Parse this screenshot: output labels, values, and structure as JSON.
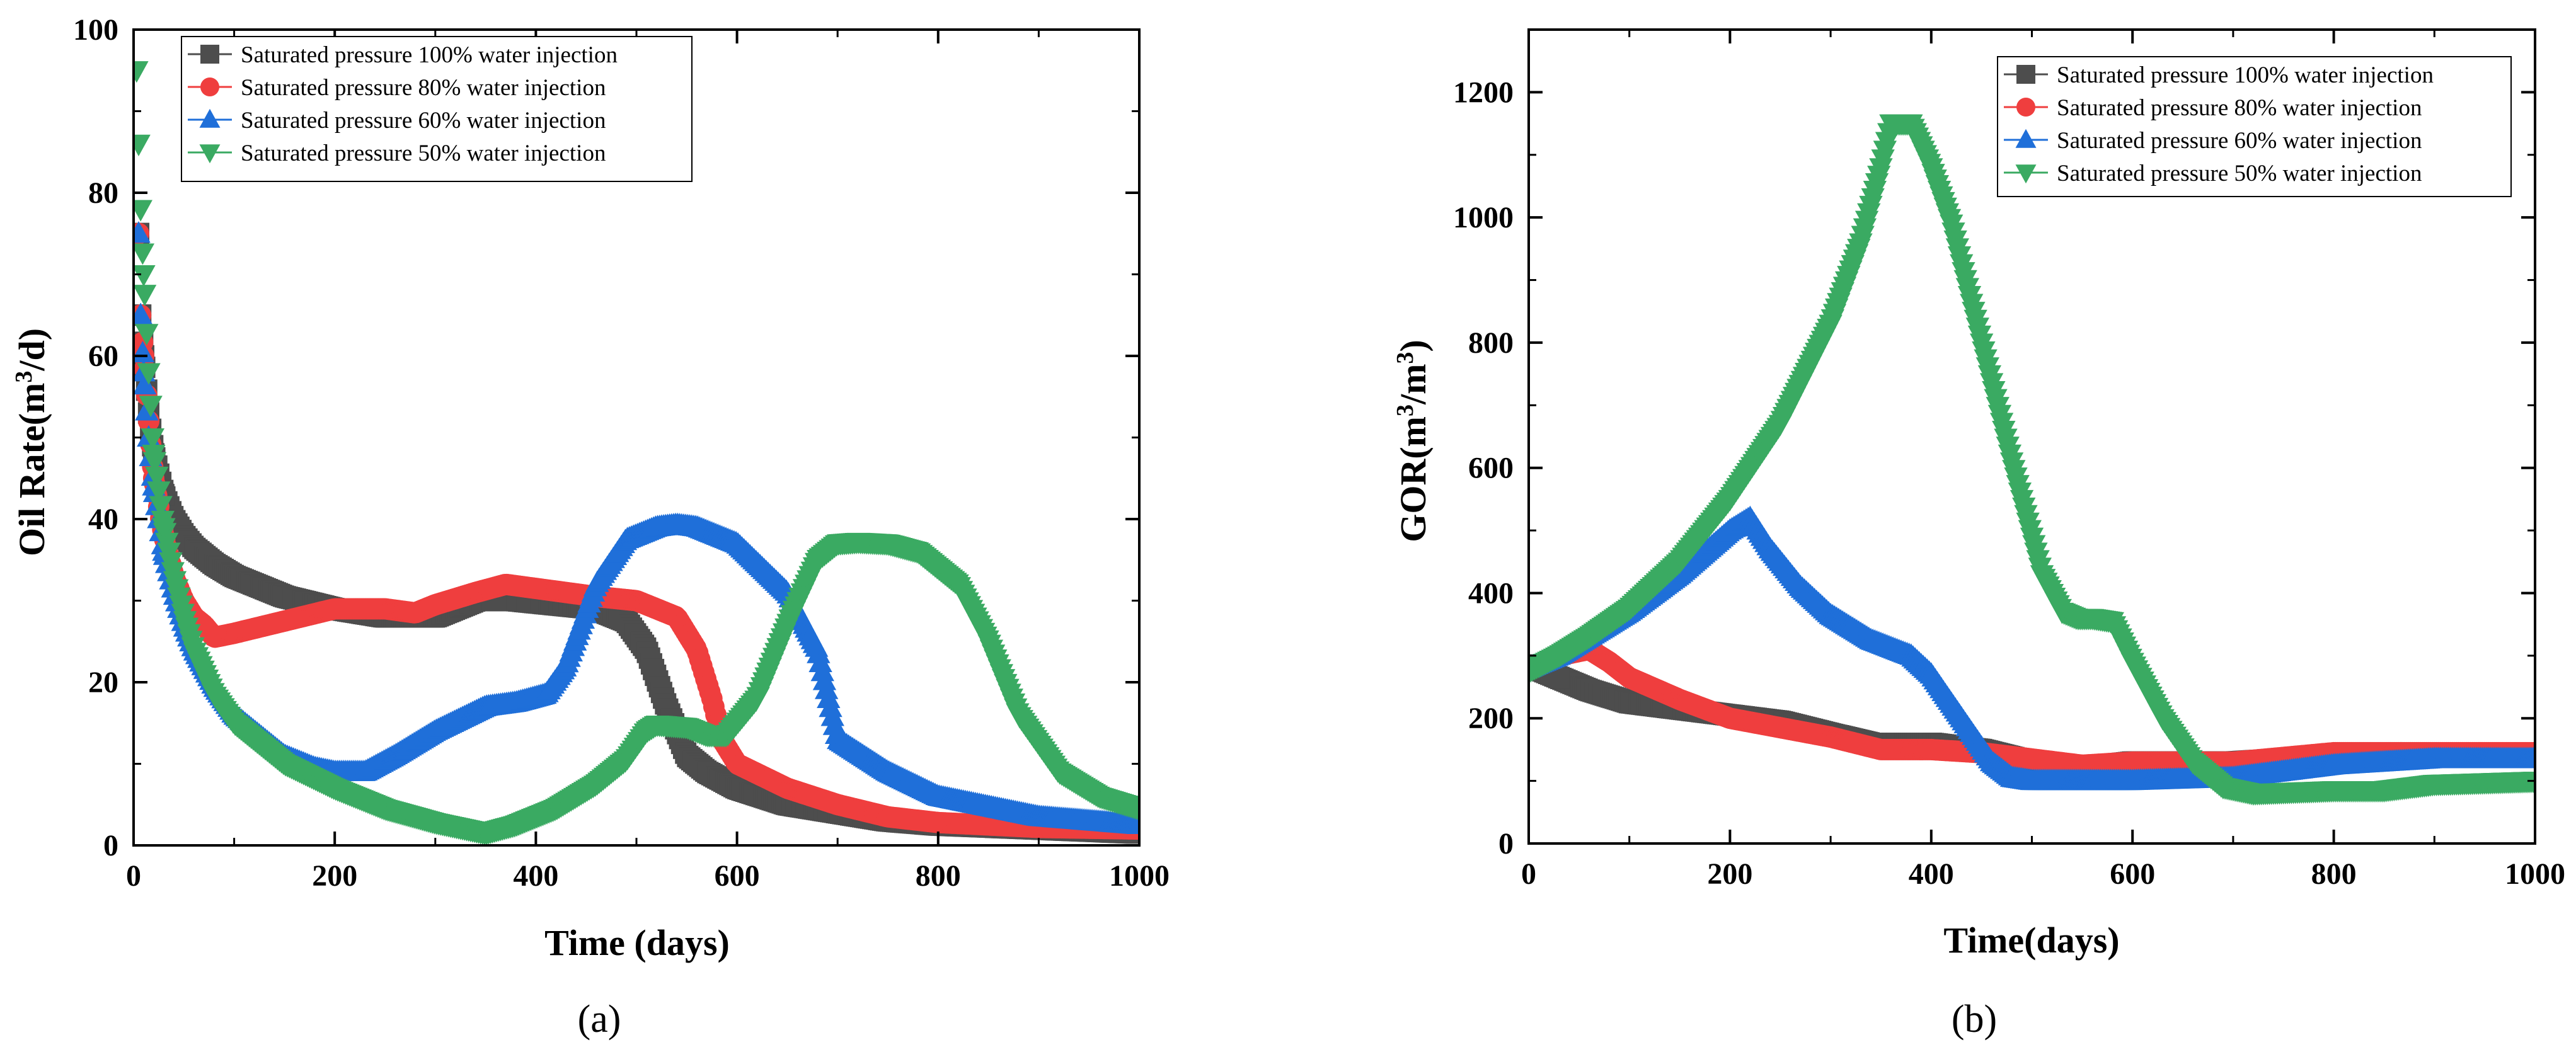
{
  "chart_data": [
    {
      "panel": "(a)",
      "type": "scatter",
      "xlabel": "Time (days)",
      "ylabel": {
        "prefix": "Oil Rate(m",
        "sup": "3",
        "suffix": "/d)"
      },
      "xlim": [
        0,
        1000
      ],
      "ylim": [
        0,
        100
      ],
      "xticks": [
        0,
        200,
        400,
        600,
        800,
        1000
      ],
      "yticks": [
        0,
        20,
        40,
        60,
        80,
        100
      ],
      "legend_position": "top-left",
      "series": [
        {
          "name": "Saturated pressure 100% water injection",
          "color": "#4d4d4d",
          "marker": "square",
          "x": [
            5,
            7,
            10,
            15,
            20,
            30,
            40,
            50,
            60,
            80,
            100,
            150,
            200,
            250,
            300,
            340,
            380,
            420,
            460,
            490,
            510,
            530,
            550,
            570,
            600,
            650,
            700,
            750,
            800,
            900,
            1000
          ],
          "y": [
            75,
            65,
            60,
            53,
            48,
            43,
            40,
            38,
            36.5,
            34.5,
            33,
            30.5,
            29,
            28,
            28,
            30,
            30,
            29.5,
            29,
            27.5,
            24,
            17,
            11,
            9,
            7,
            5,
            4,
            3,
            2.5,
            2,
            1.5
          ]
        },
        {
          "name": "Saturated pressure 80% water injection",
          "color": "#ef3e3e",
          "marker": "circle",
          "x": [
            5,
            7,
            10,
            15,
            20,
            30,
            40,
            50,
            60,
            70,
            80,
            100,
            150,
            200,
            250,
            280,
            300,
            340,
            370,
            400,
            430,
            460,
            500,
            540,
            560,
            575,
            585,
            600,
            650,
            700,
            750,
            800,
            900,
            1000
          ],
          "y": [
            75,
            65,
            60,
            52,
            45,
            38,
            33,
            30,
            28,
            27,
            25.5,
            26,
            27.5,
            29,
            29,
            28.5,
            29.5,
            31,
            32,
            31.5,
            31,
            30.5,
            30,
            28,
            24,
            18,
            13,
            10,
            7,
            5,
            3.5,
            2.8,
            2.2,
            2
          ]
        },
        {
          "name": "Saturated pressure 60% water injection",
          "color": "#1f6fd9",
          "marker": "triangle-up",
          "x": [
            5,
            7,
            10,
            15,
            20,
            30,
            40,
            50,
            60,
            80,
            100,
            150,
            180,
            200,
            230,
            260,
            300,
            350,
            380,
            410,
            430,
            460,
            490,
            520,
            540,
            560,
            600,
            650,
            680,
            700,
            750,
            800,
            900,
            1000
          ],
          "y": [
            75,
            65,
            58,
            50,
            44,
            36,
            31,
            27,
            24,
            19.5,
            16,
            11,
            9.5,
            9,
            9,
            11,
            14,
            17,
            17.5,
            18.5,
            22,
            32,
            37.5,
            39,
            39.3,
            39,
            37,
            31,
            24,
            13,
            9,
            6,
            3.5,
            2.5
          ]
        },
        {
          "name": "Saturated pressure 50% water injection",
          "color": "#3aaa62",
          "marker": "triangle-down",
          "x": [
            3,
            5,
            7,
            10,
            15,
            20,
            30,
            40,
            50,
            60,
            80,
            100,
            150,
            200,
            250,
            300,
            350,
            380,
            420,
            460,
            490,
            510,
            520,
            530,
            550,
            570,
            590,
            620,
            650,
            680,
            700,
            720,
            750,
            780,
            820,
            850,
            880,
            920,
            960,
            1000
          ],
          "y": [
            95,
            86,
            78,
            70,
            58,
            48,
            39,
            33,
            28,
            24,
            18.5,
            15,
            10,
            7,
            4.5,
            2.8,
            1.5,
            2.5,
            4.5,
            7.5,
            10.5,
            14,
            14.8,
            14.7,
            14.5,
            13.5,
            13.5,
            18,
            27,
            35,
            37,
            37.2,
            37,
            36,
            32,
            25,
            16,
            9,
            6,
            4.5
          ]
        }
      ]
    },
    {
      "panel": "(b)",
      "type": "scatter",
      "xlabel": "Time(days)",
      "ylabel": {
        "prefix": "GOR(m",
        "sup": "3",
        "mid": "/m",
        "sup2": "3",
        "suffix": ")"
      },
      "xlim": [
        0,
        1000
      ],
      "ylim": [
        0,
        1300
      ],
      "xticks": [
        0,
        200,
        400,
        600,
        800,
        1000
      ],
      "yticks": [
        0,
        200,
        400,
        600,
        800,
        1000,
        1200
      ],
      "legend_position": "top-right",
      "series": [
        {
          "name": "Saturated pressure 100% water injection",
          "color": "#4d4d4d",
          "marker": "square",
          "x": [
            0,
            30,
            60,
            100,
            150,
            200,
            250,
            300,
            340,
            400,
            450,
            500,
            550,
            600,
            700,
            800,
            900,
            1000
          ],
          "y": [
            285,
            265,
            245,
            225,
            215,
            205,
            195,
            175,
            160,
            160,
            150,
            130,
            120,
            130,
            130,
            140,
            140,
            140
          ]
        },
        {
          "name": "Saturated pressure 80% water injection",
          "color": "#ef3e3e",
          "marker": "circle",
          "x": [
            0,
            30,
            60,
            80,
            100,
            150,
            200,
            250,
            300,
            350,
            400,
            450,
            500,
            550,
            600,
            700,
            800,
            900,
            1000
          ],
          "y": [
            280,
            300,
            310,
            290,
            265,
            230,
            200,
            185,
            170,
            150,
            150,
            145,
            135,
            125,
            130,
            130,
            145,
            145,
            145
          ]
        },
        {
          "name": "Saturated pressure 60% water injection",
          "color": "#1f6fd9",
          "marker": "triangle-up",
          "x": [
            0,
            30,
            60,
            100,
            150,
            200,
            220,
            240,
            270,
            300,
            340,
            380,
            400,
            430,
            460,
            480,
            500,
            600,
            700,
            750,
            800,
            900,
            1000
          ],
          "y": [
            280,
            300,
            330,
            370,
            430,
            500,
            520,
            470,
            410,
            365,
            325,
            300,
            270,
            200,
            130,
            105,
            100,
            100,
            105,
            115,
            125,
            135,
            135
          ]
        },
        {
          "name": "Saturated pressure 50% water injection",
          "color": "#3aaa62",
          "marker": "triangle-down",
          "x": [
            0,
            30,
            60,
            100,
            150,
            200,
            250,
            300,
            330,
            350,
            360,
            380,
            400,
            420,
            450,
            480,
            510,
            530,
            545,
            560,
            580,
            600,
            630,
            660,
            690,
            720,
            800,
            850,
            900,
            1000
          ],
          "y": [
            275,
            300,
            330,
            375,
            450,
            550,
            670,
            830,
            960,
            1080,
            1150,
            1150,
            1080,
            990,
            800,
            610,
            430,
            370,
            360,
            360,
            355,
            290,
            200,
            130,
            90,
            80,
            85,
            85,
            95,
            100
          ]
        }
      ]
    }
  ]
}
